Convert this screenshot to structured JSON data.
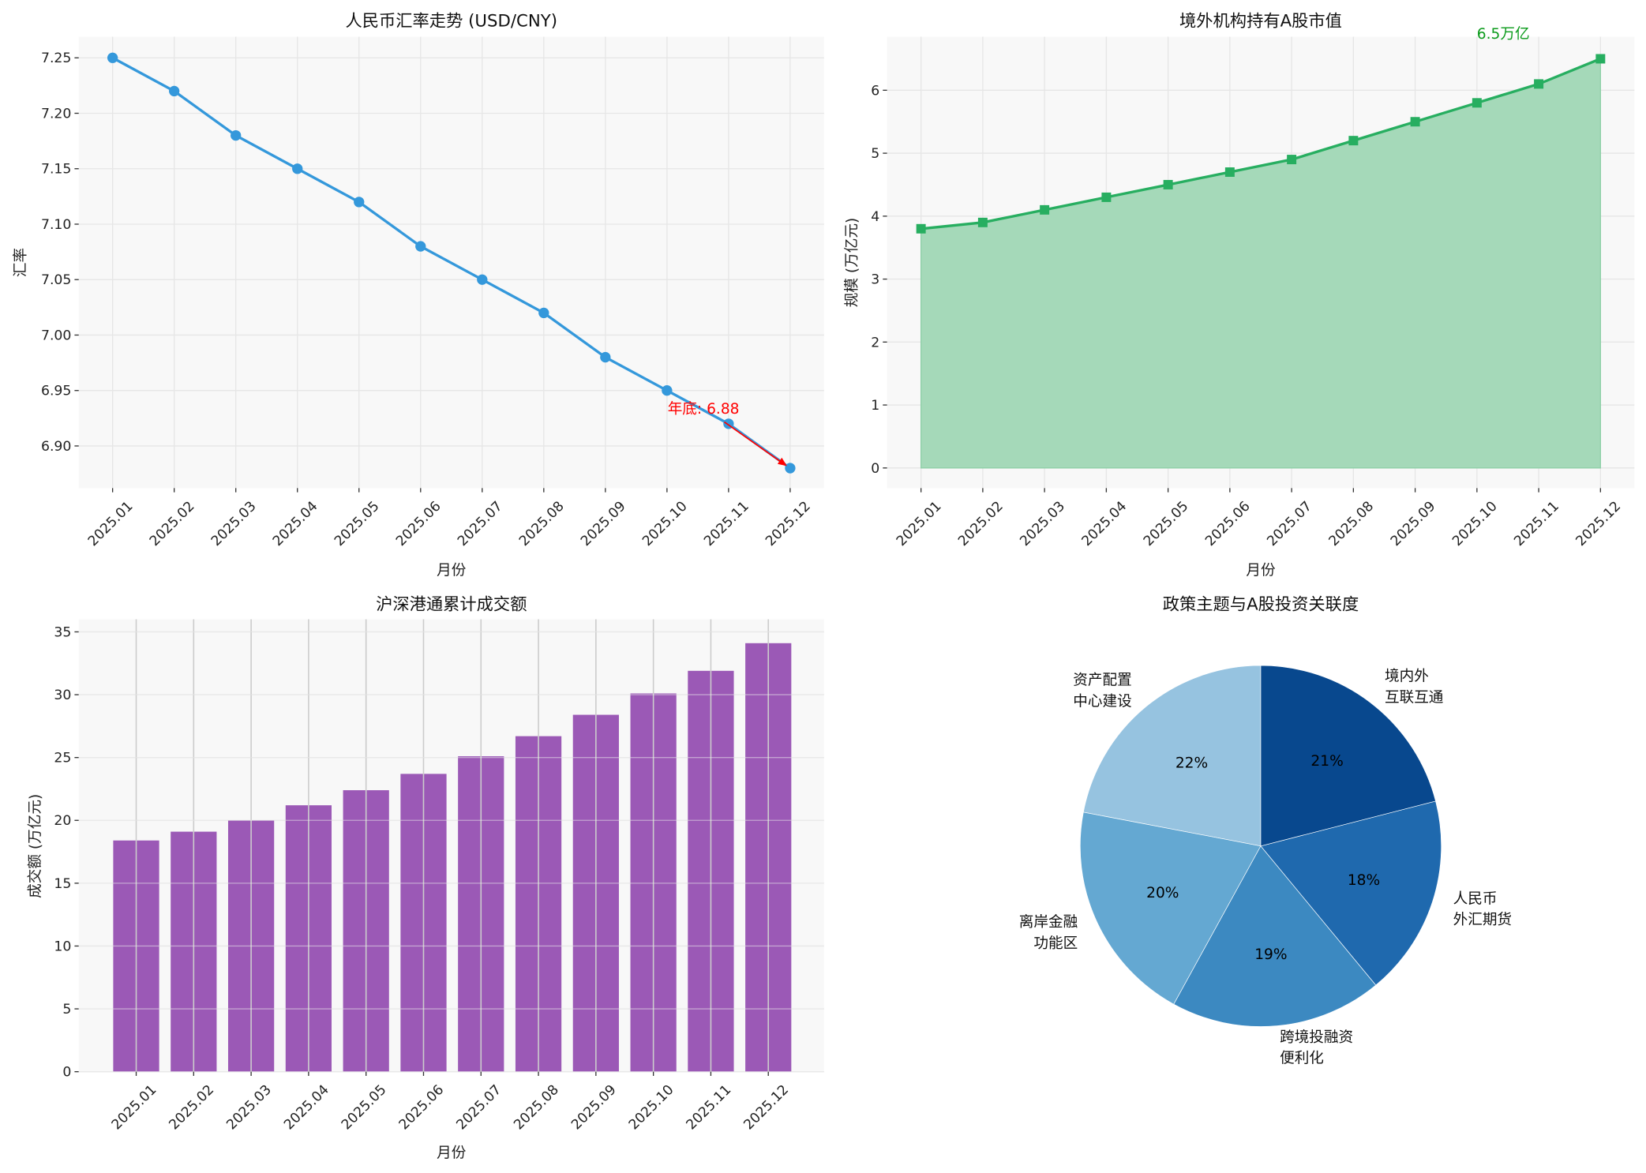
{
  "chart_data": [
    {
      "type": "line",
      "title": "人民币汇率走势 (USD/CNY)",
      "xlabel": "月份",
      "ylabel": "汇率",
      "categories": [
        "2025.01",
        "2025.02",
        "2025.03",
        "2025.04",
        "2025.05",
        "2025.06",
        "2025.07",
        "2025.08",
        "2025.09",
        "2025.10",
        "2025.11",
        "2025.12"
      ],
      "values": [
        7.25,
        7.22,
        7.18,
        7.15,
        7.12,
        7.08,
        7.05,
        7.02,
        6.98,
        6.95,
        6.92,
        6.88
      ],
      "ylim": [
        6.862,
        7.269
      ],
      "yticks": [
        "6.90",
        "6.95",
        "7.00",
        "7.05",
        "7.10",
        "7.15",
        "7.20",
        "7.25"
      ],
      "color": "#3498db",
      "marker": "circle",
      "grid": true,
      "annotation": {
        "text": "年底: 6.88",
        "color": "#ff0000",
        "points_to": "2025.12"
      }
    },
    {
      "type": "area",
      "title": "境外机构持有A股市值",
      "xlabel": "月份",
      "ylabel": "规模 (万亿元)",
      "categories": [
        "2025.01",
        "2025.02",
        "2025.03",
        "2025.04",
        "2025.05",
        "2025.06",
        "2025.07",
        "2025.08",
        "2025.09",
        "2025.10",
        "2025.11",
        "2025.12"
      ],
      "values": [
        3.8,
        3.9,
        4.1,
        4.3,
        4.5,
        4.7,
        4.9,
        5.2,
        5.5,
        5.8,
        6.1,
        6.5
      ],
      "ylim": [
        -0.32,
        6.85
      ],
      "yticks": [
        "0",
        "1",
        "2",
        "3",
        "4",
        "5",
        "6"
      ],
      "color": "#27ae60",
      "fill_color": "#a5d9b9",
      "marker": "square",
      "grid": true,
      "annotation": {
        "text": "6.5万亿",
        "color": "#0a9a1a"
      }
    },
    {
      "type": "bar",
      "title": "沪深港通累计成交额",
      "xlabel": "月份",
      "ylabel": "成交额 (万亿元)",
      "categories": [
        "2025.01",
        "2025.02",
        "2025.03",
        "2025.04",
        "2025.05",
        "2025.06",
        "2025.07",
        "2025.08",
        "2025.09",
        "2025.10",
        "2025.11",
        "2025.12"
      ],
      "values": [
        18.4,
        19.1,
        20.0,
        21.2,
        22.4,
        23.7,
        25.1,
        26.7,
        28.4,
        30.1,
        31.9,
        34.1
      ],
      "ylim": [
        0,
        36
      ],
      "yticks": [
        "0",
        "5",
        "10",
        "15",
        "20",
        "25",
        "30",
        "35"
      ],
      "color": "#9b59b6",
      "grid": true
    },
    {
      "type": "pie",
      "title": "政策主题与A股投资关联度",
      "slices": [
        {
          "label": [
            "资产配置",
            "中心建设"
          ],
          "value": 22,
          "pct": "22%",
          "color": "#96c3e0"
        },
        {
          "label": [
            "离岸金融",
            "功能区"
          ],
          "value": 20,
          "pct": "20%",
          "color": "#64a8d2"
        },
        {
          "label": [
            "跨境投融资",
            "便利化"
          ],
          "value": 19,
          "pct": "19%",
          "color": "#3c89c1"
        },
        {
          "label": [
            "人民币",
            "外汇期货"
          ],
          "value": 18,
          "pct": "18%",
          "color": "#1f69ae"
        },
        {
          "label": [
            "境内外",
            "互联互通"
          ],
          "value": 21,
          "pct": "21%",
          "color": "#08488e"
        }
      ],
      "startangle": 90,
      "direction": "counterclockwise"
    }
  ]
}
